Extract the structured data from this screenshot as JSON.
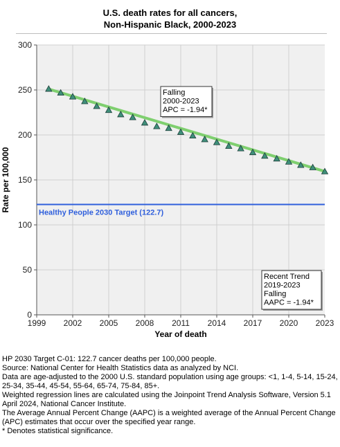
{
  "chart_data": {
    "type": "line",
    "title": "U.S. death rates for all cancers,",
    "subtitle": "Non-Hispanic Black,  2000-2023",
    "xlabel": "Year of death",
    "ylabel": "Rate per 100,000",
    "xlim": [
      1999,
      2023
    ],
    "ylim": [
      0,
      300
    ],
    "xticks": [
      1999,
      2002,
      2005,
      2008,
      2011,
      2014,
      2017,
      2020,
      2023
    ],
    "yticks": [
      0,
      50,
      100,
      150,
      200,
      250,
      300
    ],
    "grid": true,
    "series": [
      {
        "marker": "triangle",
        "color": "#3f8f7a",
        "x": [
          2000,
          2001,
          2002,
          2003,
          2004,
          2005,
          2006,
          2007,
          2008,
          2009,
          2010,
          2011,
          2012,
          2013,
          2014,
          2015,
          2016,
          2017,
          2018,
          2019,
          2020,
          2021,
          2022,
          2023
        ],
        "values": [
          251.2,
          246.9,
          242.6,
          237.4,
          232.0,
          227.6,
          222.8,
          219.6,
          213.6,
          209.6,
          207.6,
          203.2,
          199.2,
          195.1,
          191.8,
          187.7,
          185.0,
          180.7,
          176.7,
          173.7,
          170.2,
          166.5,
          163.9,
          159.4
        ]
      },
      {
        "type": "regression",
        "color": "#7fcf6f",
        "x": [
          2000,
          2023
        ],
        "values": [
          251.0,
          159.5
        ]
      }
    ],
    "reference_line": {
      "value": 122.7,
      "label": "Healthy People 2030 Target (122.7)",
      "color": "#2f5fdc"
    },
    "annotations": [
      {
        "lines": [
          "Falling",
          "2000-2023",
          "APC = -1.94*"
        ]
      },
      {
        "lines": [
          "Recent Trend",
          "2019-2023",
          "Falling",
          "AAPC = -1.94*"
        ]
      }
    ]
  },
  "footnotes": [
    "HP 2030 Target C-01: 122.7 cancer deaths per 100,000 people.",
    "Source: National Center for Health Statistics data as analyzed by NCI.",
    "Data are age-adjusted to the 2000 U.S. standard population using age groups: <1, 1-4, 5-14, 15-24, 25-34, 35-44, 45-54, 55-64, 65-74, 75-84, 85+.",
    "Weighted regression lines are calculated using the Joinpoint Trend Analysis Software, Version 5.1 April 2024, National Cancer Institute.",
    "The Average Annual Percent Change (AAPC) is a weighted average of the Annual Percent Change (APC) estimates that occur over the specified year range.",
    "* Denotes statistical significance."
  ]
}
